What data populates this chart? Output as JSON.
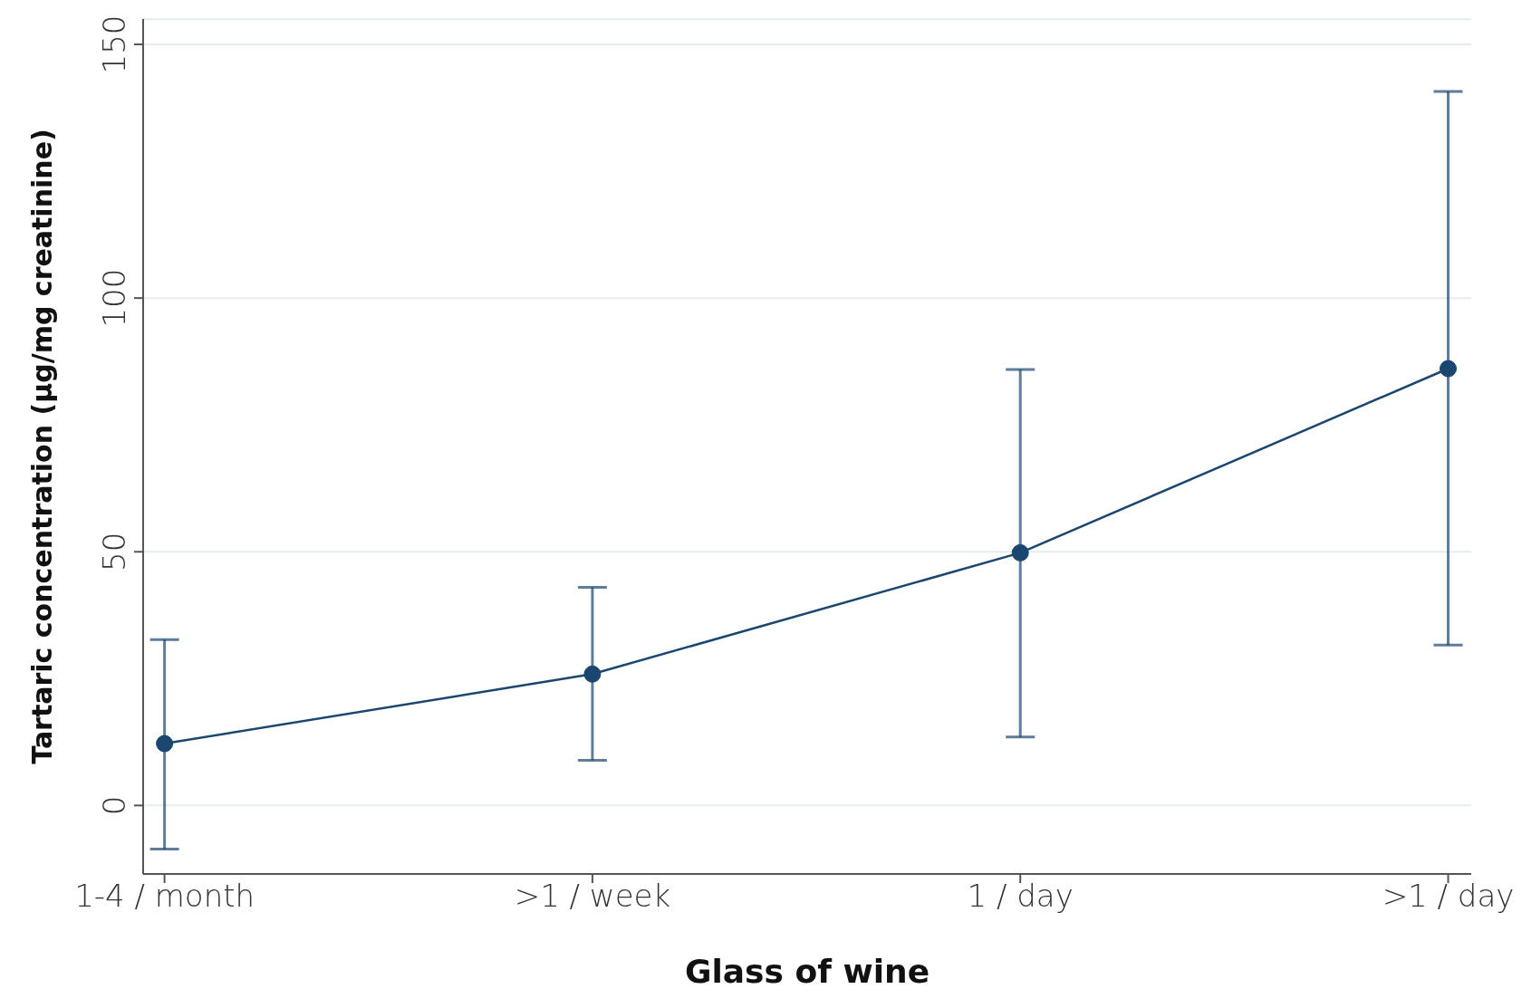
{
  "chart_data": {
    "type": "line",
    "xlabel": "Glass of wine",
    "ylabel": "Tartaric concentration (µg/mg creatinine)",
    "categories": [
      "1-4 / month",
      ">1 / week",
      "1 / day",
      ">1 / day"
    ],
    "series": [
      {
        "color": "#1a4670",
        "values": [
          12.2,
          25.9,
          49.8,
          86.1
        ],
        "errors": [
          [
            -8.6,
            32.7
          ],
          [
            8.9,
            43
          ],
          [
            13.5,
            85.9
          ],
          [
            31.6,
            140.7
          ]
        ]
      }
    ],
    "ylim": [
      -13.5,
      155
    ],
    "yticks": [
      0,
      50,
      100,
      150
    ],
    "grid": "y",
    "marker": "circle",
    "line_style": "solid"
  }
}
